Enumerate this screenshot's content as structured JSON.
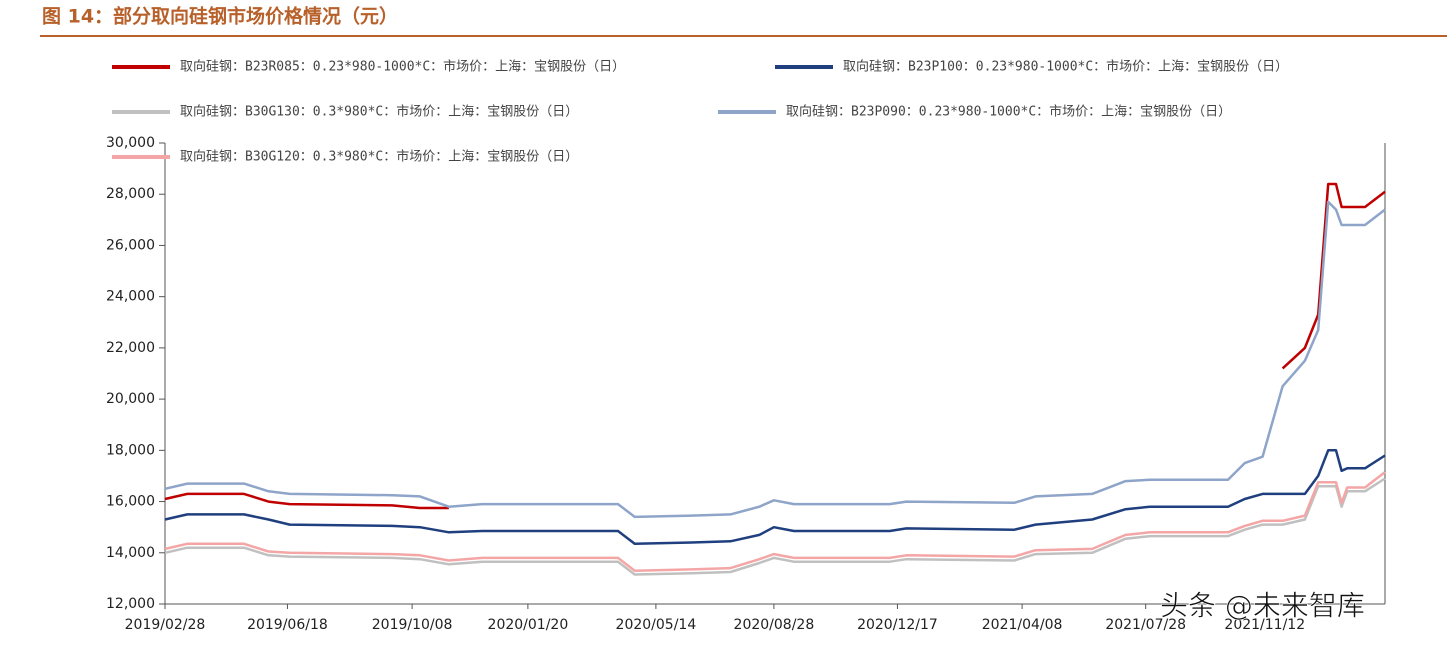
{
  "chart_data": {
    "type": "line",
    "title": "图 14：部分取向硅钢市场价格情况（元）",
    "watermark": "头条 @未来智库",
    "x": [
      "2019/02/28",
      "2019/03/20",
      "2019/05/10",
      "2019/06/01",
      "2019/06/20",
      "2019/09/20",
      "2019/10/15",
      "2019/11/10",
      "2019/12/10",
      "2020/04/10",
      "2020/04/25",
      "2020/06/15",
      "2020/07/20",
      "2020/08/15",
      "2020/08/28",
      "2020/09/15",
      "2020/12/10",
      "2020/12/25",
      "2021/04/01",
      "2021/04/20",
      "2021/06/10",
      "2021/07/10",
      "2021/08/01",
      "2021/10/10",
      "2021/10/25",
      "2021/11/10",
      "2021/11/28",
      "2021/12/18",
      "2021/12/30",
      "2022/01/08",
      "2022/01/15",
      "2022/01/20",
      "2022/01/25",
      "2022/02/10",
      "2022/02/28"
    ],
    "series": [
      {
        "name": "取向硅钢：B23R085：0.23*980-1000*C：市场价：上海：宝钢股份（日）",
        "color": "#c00000",
        "values": [
          16100,
          16300,
          16300,
          16000,
          15900,
          15850,
          15750,
          15750,
          null,
          null,
          null,
          null,
          null,
          null,
          null,
          null,
          null,
          null,
          null,
          null,
          null,
          null,
          null,
          null,
          null,
          null,
          21200,
          22000,
          23300,
          28400,
          28400,
          27500,
          27500,
          27500,
          28100
        ]
      },
      {
        "name": "取向硅钢：B23P100：0.23*980-1000*C：市场价：上海：宝钢股份（日）",
        "color": "#1f3f7f",
        "values": [
          15300,
          15500,
          15500,
          15300,
          15100,
          15050,
          15000,
          14800,
          14850,
          14850,
          14350,
          14400,
          14450,
          14700,
          15000,
          14850,
          14850,
          14950,
          14900,
          15100,
          15300,
          15700,
          15800,
          15800,
          16100,
          16300,
          16300,
          16300,
          17000,
          18000,
          18000,
          17200,
          17300,
          17300,
          17800
        ]
      },
      {
        "name": "取向硅钢：B30G130：0.3*980*C：市场价：上海：宝钢股份（日）",
        "color": "#c0c0c0",
        "values": [
          14000,
          14200,
          14200,
          13900,
          13850,
          13800,
          13750,
          13550,
          13650,
          13650,
          13150,
          13200,
          13250,
          13600,
          13800,
          13650,
          13650,
          13750,
          13700,
          13950,
          14000,
          14550,
          14650,
          14650,
          14900,
          15100,
          15100,
          15300,
          16600,
          16600,
          16600,
          15800,
          16400,
          16400,
          16900
        ]
      },
      {
        "name": "取向硅钢：B23P090：0.23*980-1000*C：市场价：上海：宝钢股份（日）",
        "color": "#8ea4c8",
        "values": [
          16500,
          16700,
          16700,
          16400,
          16300,
          16250,
          16200,
          15800,
          15900,
          15900,
          15400,
          15450,
          15500,
          15800,
          16050,
          15900,
          15900,
          16000,
          15950,
          16200,
          16300,
          16800,
          16850,
          16850,
          17500,
          17750,
          20500,
          21500,
          22700,
          27700,
          27400,
          26800,
          26800,
          26800,
          27400
        ]
      },
      {
        "name": "取向硅钢：B30G120：0.3*980*C：市场价：上海：宝钢股份（日）",
        "color": "#f4a6a6",
        "values": [
          14150,
          14350,
          14350,
          14050,
          14000,
          13950,
          13900,
          13700,
          13800,
          13800,
          13300,
          13350,
          13400,
          13750,
          13950,
          13800,
          13800,
          13900,
          13850,
          14100,
          14150,
          14700,
          14800,
          14800,
          15050,
          15250,
          15250,
          15450,
          16750,
          16750,
          16750,
          15950,
          16550,
          16550,
          17150
        ]
      }
    ],
    "xlim": [
      "2019/02/28",
      "2022/02/28"
    ],
    "xticks": [
      "2019/02/28",
      "2019/06/18",
      "2019/10/08",
      "2020/01/20",
      "2020/05/14",
      "2020/08/28",
      "2020/12/17",
      "2021/04/08",
      "2021/07/28",
      "2021/11/12"
    ],
    "ylim": [
      12000,
      30000
    ],
    "yticks": [
      {
        "value": 12000,
        "label": "12,000"
      },
      {
        "value": 14000,
        "label": "14,000"
      },
      {
        "value": 16000,
        "label": "16,000"
      },
      {
        "value": 18000,
        "label": "18,000"
      },
      {
        "value": 20000,
        "label": "20,000"
      },
      {
        "value": 22000,
        "label": "22,000"
      },
      {
        "value": 24000,
        "label": "24,000"
      },
      {
        "value": 26000,
        "label": "26,000"
      },
      {
        "value": 28000,
        "label": "28,000"
      },
      {
        "value": 30000,
        "label": "30,000"
      }
    ],
    "grid": false
  }
}
